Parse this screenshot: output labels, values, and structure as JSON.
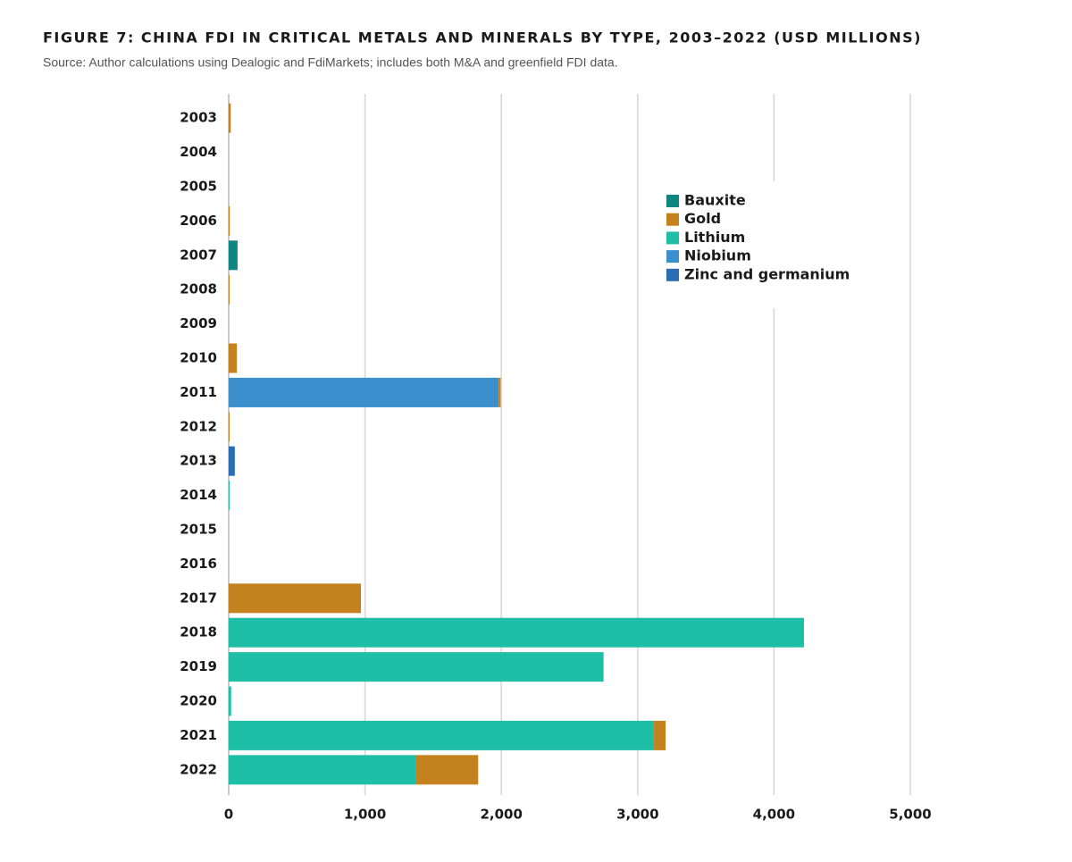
{
  "chart_data": {
    "type": "stacked-bar-horizontal",
    "title": "FIGURE 7: CHINA FDI IN CRITICAL METALS AND MINERALS BY TYPE, 2003–2022 (USD MILLIONS)",
    "subtitle": "Source: Author calculations using Dealogic and FdiMarkets; includes both M&A and greenfield FDI data.",
    "categories": [
      "2003",
      "2004",
      "2005",
      "2006",
      "2007",
      "2008",
      "2009",
      "2010",
      "2011",
      "2012",
      "2013",
      "2014",
      "2015",
      "2016",
      "2017",
      "2018",
      "2019",
      "2020",
      "2021",
      "2022"
    ],
    "series": [
      {
        "name": "Bauxite",
        "color": "#0f8580",
        "values": [
          null,
          null,
          null,
          null,
          65,
          null,
          null,
          null,
          null,
          null,
          null,
          null,
          null,
          null,
          null,
          null,
          null,
          null,
          null,
          null
        ]
      },
      {
        "name": "Lithium",
        "color": "#1fbea6",
        "values": [
          null,
          null,
          null,
          null,
          null,
          null,
          null,
          null,
          null,
          null,
          null,
          3,
          null,
          null,
          null,
          4220,
          2750,
          18,
          3120,
          1370
        ]
      },
      {
        "name": "Niobium",
        "color": "#3a8fcc",
        "values": [
          null,
          null,
          null,
          null,
          null,
          null,
          null,
          null,
          1980,
          null,
          null,
          null,
          null,
          null,
          null,
          null,
          null,
          null,
          null,
          null
        ]
      },
      {
        "name": "Zinc and germanium",
        "color": "#2a6db5",
        "values": [
          null,
          null,
          null,
          null,
          null,
          null,
          null,
          null,
          null,
          null,
          45,
          null,
          null,
          null,
          null,
          null,
          null,
          null,
          null,
          null
        ]
      },
      {
        "name": "Gold",
        "color": "#c4821f",
        "values": [
          15,
          null,
          null,
          8,
          null,
          5,
          null,
          60,
          15,
          3,
          null,
          null,
          null,
          null,
          970,
          null,
          null,
          null,
          85,
          460
        ]
      }
    ],
    "legend_order": [
      "Bauxite",
      "Gold",
      "Lithium",
      "Niobium",
      "Zinc and germanium"
    ],
    "xlim": [
      0,
      5000
    ],
    "xticks": [
      0,
      {
        "value": 1000,
        "label": "1,000"
      },
      {
        "value": 2000,
        "label": "2,000"
      },
      {
        "value": 3000,
        "label": "3,000"
      },
      {
        "value": 4000,
        "label": "4,000"
      },
      {
        "value": 5000,
        "label": "5,000"
      }
    ],
    "grid": true,
    "legend": "upper right"
  }
}
